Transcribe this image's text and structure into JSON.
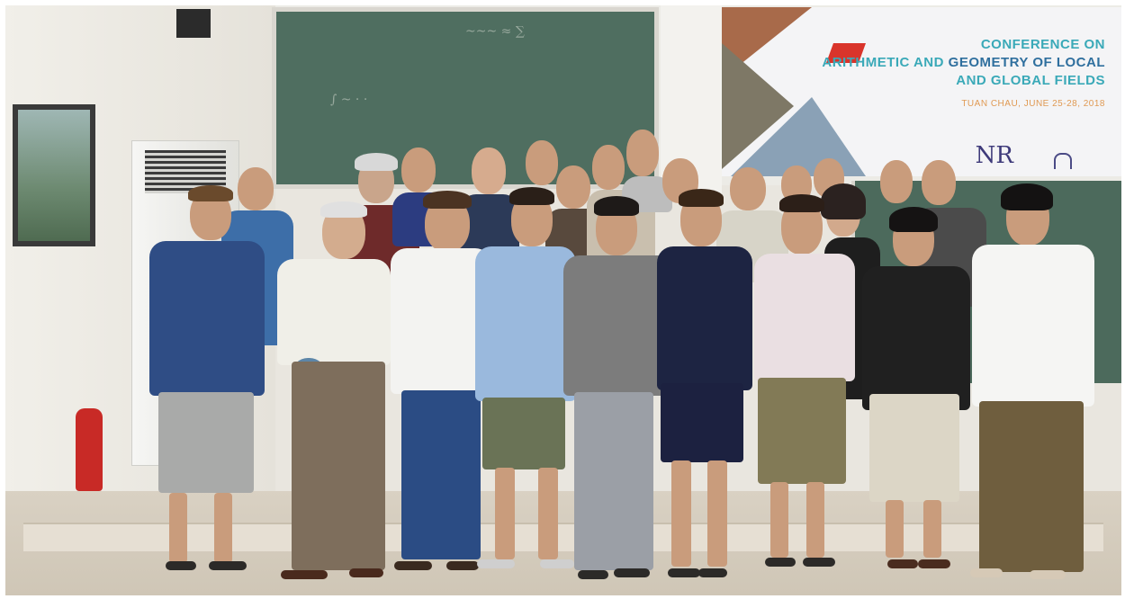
{
  "banner": {
    "line1": "CONFERENCE ON",
    "line2_a": "ARITHMETIC AND ",
    "line2_b": "GEOMETRY OF LOCAL",
    "line3": "AND GLOBAL FIELDS",
    "subtitle": "TUAN CHAU, JUNE 25-28, 2018",
    "logo_text": "NR"
  },
  "colors": {
    "banner_teal": "#3aa9b8",
    "banner_blue": "#2f6f9e",
    "banner_orange": "#e09a54",
    "chalkboard": "#4f6e60"
  },
  "people": [
    {
      "top": "blue",
      "bottom": "gray"
    },
    {
      "top": "white",
      "bottom": "taupe"
    },
    {
      "top": "white",
      "bottom": "navy"
    },
    {
      "top": "light-blue",
      "bottom": "olive"
    },
    {
      "top": "gray",
      "bottom": "gray"
    },
    {
      "top": "navy",
      "bottom": "navy"
    },
    {
      "top": "striped",
      "bottom": "khaki"
    },
    {
      "top": "black",
      "bottom": "beige"
    },
    {
      "top": "white",
      "bottom": "olive"
    }
  ]
}
